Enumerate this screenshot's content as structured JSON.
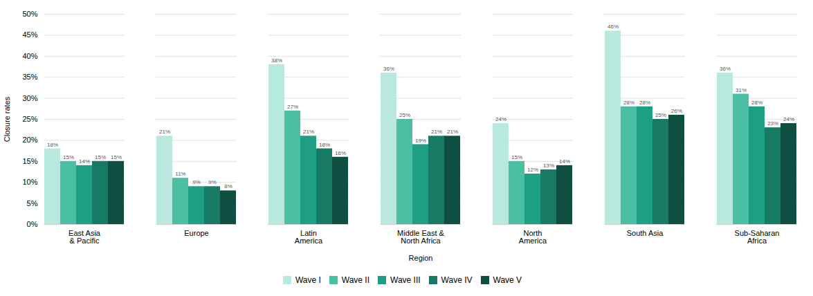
{
  "chart_data": {
    "type": "bar",
    "categories": [
      "East Asia\n& Pacific",
      "Europe",
      "Latin\nAmerica",
      "Middle East &\nNorth Africa",
      "North\nAmerica",
      "South Asia",
      "Sub-Saharan\nAfrica"
    ],
    "series": [
      {
        "name": "Wave I",
        "color": "#b8e8de",
        "values": [
          18,
          21,
          38,
          36,
          24,
          46,
          36
        ],
        "value_labels": [
          "18%",
          "21%",
          "38%",
          "36%",
          "24%",
          "46%",
          "36%"
        ]
      },
      {
        "name": "Wave II",
        "color": "#4bbfa3",
        "values": [
          15,
          11,
          27,
          25,
          15,
          28,
          31
        ],
        "value_labels": [
          "15%",
          "11%",
          "27%",
          "25%",
          "15%",
          "28%",
          "31%"
        ]
      },
      {
        "name": "Wave III",
        "color": "#1e9e82",
        "values": [
          14,
          9,
          21,
          19,
          12,
          28,
          28
        ],
        "value_labels": [
          "14%",
          "9%",
          "21%",
          "19%",
          "12%",
          "28%",
          "28%"
        ]
      },
      {
        "name": "Wave IV",
        "color": "#177a64",
        "values": [
          15,
          9,
          18,
          21,
          13,
          25,
          23
        ],
        "value_labels": [
          "15%",
          "9%",
          "18%",
          "21%",
          "13%",
          "25%",
          "23%"
        ]
      },
      {
        "name": "Wave V",
        "color": "#0e4f42",
        "values": [
          15,
          8,
          16,
          21,
          14,
          26,
          24
        ],
        "value_labels": [
          "15%",
          "8%",
          "16%",
          "21%",
          "14%",
          "26%",
          "24%"
        ]
      }
    ],
    "xlabel": "Region",
    "ylabel": "Closure rates",
    "ylim": [
      0,
      50
    ],
    "yticks": [
      {
        "value": 0,
        "label": "0%"
      },
      {
        "value": 5,
        "label": "5%"
      },
      {
        "value": 10,
        "label": "10%"
      },
      {
        "value": 15,
        "label": "15%"
      },
      {
        "value": 20,
        "label": "20%"
      },
      {
        "value": 25,
        "label": "25%"
      },
      {
        "value": 30,
        "label": "30%"
      },
      {
        "value": 35,
        "label": "35%"
      },
      {
        "value": 40,
        "label": "40%"
      },
      {
        "value": 45,
        "label": "45%"
      },
      {
        "value": 50,
        "label": "50%"
      }
    ],
    "grid": true,
    "data_labels": true,
    "legend": "bottom"
  }
}
